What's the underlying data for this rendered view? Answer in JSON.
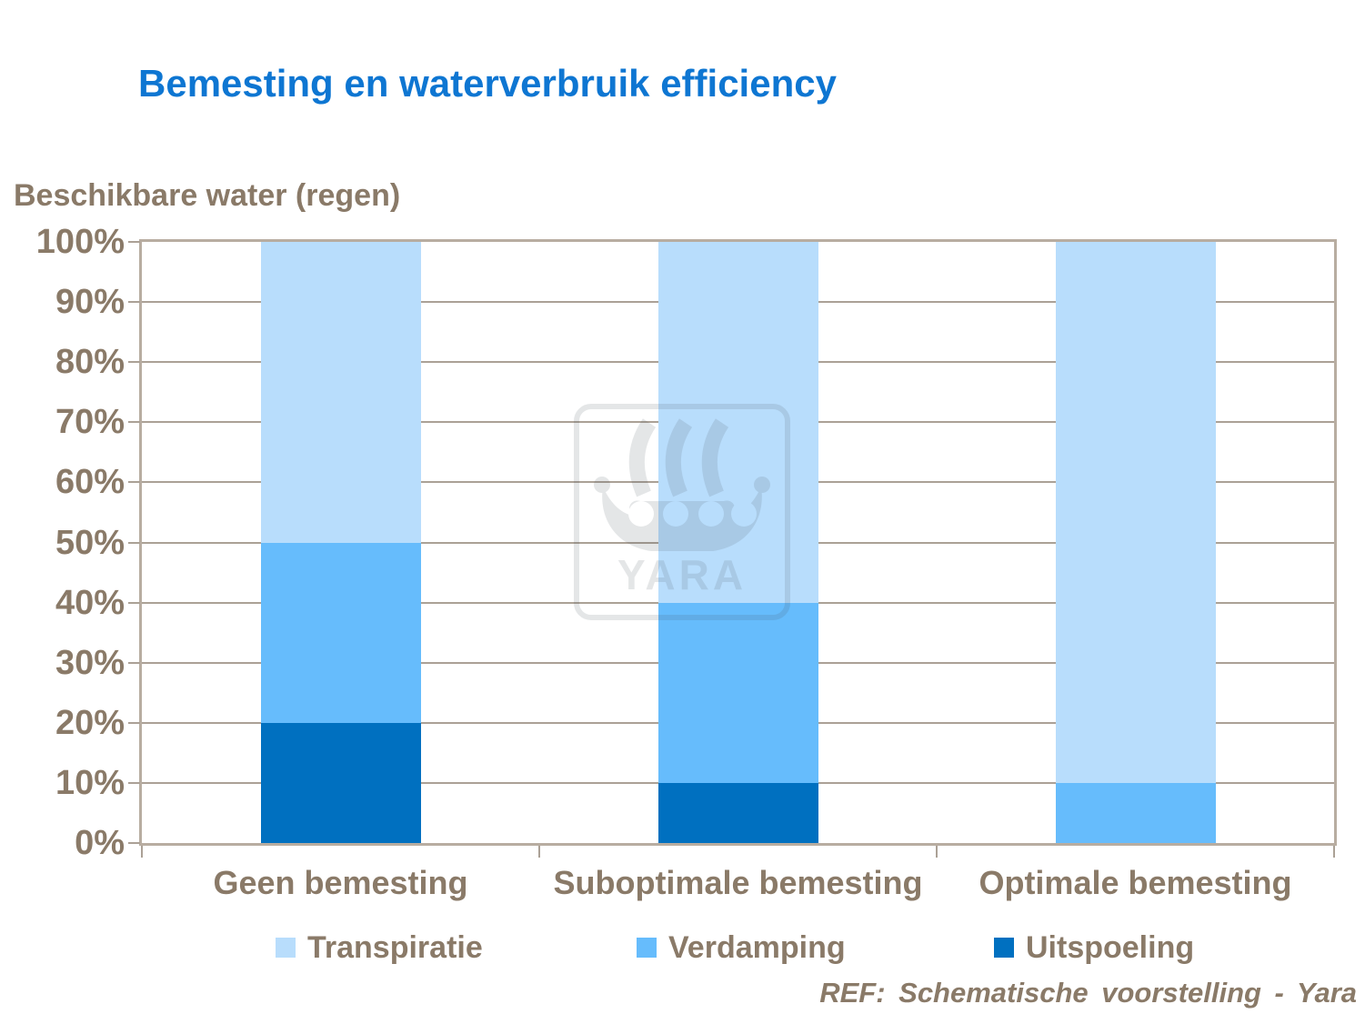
{
  "title": "Bemesting en waterverbruik efficiency",
  "ref_text": "REF: Schematische voorstelling - Yara",
  "watermark_text": "YARA",
  "colors": {
    "title_blue": "#0e76d2",
    "text_brown": "#8a7a68",
    "axis_border_tan": "#b8ada1",
    "gridline": "#aba196",
    "transpiratie_light_blue": "#b8ddfc",
    "verdamping_mid_blue": "#66bcfc",
    "uitspoeling_dark_blue": "#0070c0"
  },
  "chart_data": {
    "type": "bar",
    "stacked": true,
    "title": "Bemesting en waterverbruik efficiency",
    "y_axis_title": "Beschikbare water (regen)",
    "categories": [
      "Geen bemesting",
      "Suboptimale bemesting",
      "Optimale bemesting"
    ],
    "series": [
      {
        "name": "Transpiratie",
        "color": "#b8ddfc",
        "values": [
          50,
          60,
          90
        ]
      },
      {
        "name": "Verdamping",
        "color": "#66bcfc",
        "values": [
          30,
          30,
          10
        ]
      },
      {
        "name": "Uitspoeling",
        "color": "#0070c0",
        "values": [
          20,
          10,
          0
        ]
      }
    ],
    "stack_order_bottom_to_top": [
      "Uitspoeling",
      "Verdamping",
      "Transpiratie"
    ],
    "ylim": [
      0,
      100
    ],
    "ytick_step": 10,
    "ytick_labels": [
      "0%",
      "10%",
      "20%",
      "30%",
      "40%",
      "50%",
      "60%",
      "70%",
      "80%",
      "90%",
      "100%"
    ],
    "grid": true,
    "legend_position": "bottom"
  }
}
